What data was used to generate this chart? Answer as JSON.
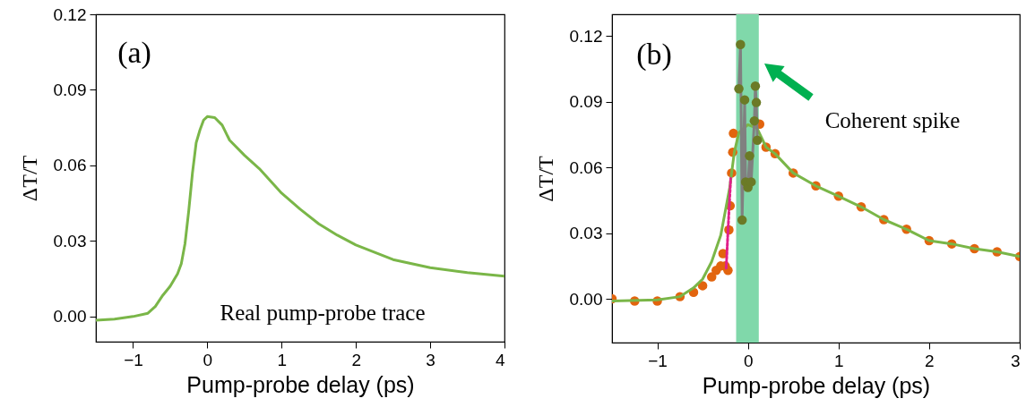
{
  "chart_data": [
    {
      "type": "line",
      "xlabel": "Pump-probe delay (ps)",
      "ylabel": "ΔT/T",
      "annotations": [
        "(a)",
        "Real pump-probe trace"
      ],
      "xlim": [
        -1.5,
        4
      ],
      "xticks": [
        -1,
        0,
        1,
        2,
        3,
        4
      ],
      "ylim": [
        -0.01,
        0.12
      ],
      "yticks": [
        {
          "value": 0,
          "label": "0.00"
        },
        0.03,
        0.06,
        0.09,
        0.12
      ],
      "grid": false,
      "x": [
        -1.5,
        -1.25,
        -1.0,
        -0.8,
        -0.7,
        -0.6,
        -0.5,
        -0.4,
        -0.35,
        -0.3,
        -0.25,
        -0.2,
        -0.15,
        -0.1,
        -0.05,
        0,
        0.1,
        0.2,
        0.3,
        0.5,
        0.7,
        1.0,
        1.25,
        1.5,
        1.75,
        2.0,
        2.5,
        3.0,
        3.5,
        4.0
      ],
      "series": [
        {
          "color": "#7ab648",
          "values": [
            -0.0015,
            -0.001,
            0,
            0.0013,
            0.004,
            0.0084,
            0.012,
            0.017,
            0.021,
            0.029,
            0.042,
            0.057,
            0.069,
            0.074,
            0.078,
            0.0794,
            0.079,
            0.076,
            0.07,
            0.064,
            0.0587,
            0.049,
            0.0426,
            0.0368,
            0.0323,
            0.0284,
            0.0226,
            0.0194,
            0.0174,
            0.016
          ]
        }
      ]
    },
    {
      "type": "scatter",
      "xlabel": "Pump-probe delay (ps)",
      "ylabel": "ΔT/T",
      "annotations": [
        "(b)",
        "Coherent spike"
      ],
      "xlim": [
        -1.5,
        3
      ],
      "xticks": [
        -1,
        0,
        1,
        2,
        3
      ],
      "ylim": [
        -0.02,
        0.13
      ],
      "yticks": [
        {
          "value": 0,
          "label": "0.00"
        },
        0.03,
        0.06,
        0.09,
        0.12
      ],
      "grid": false,
      "bands": [
        {
          "axis": "x",
          "from": -0.13,
          "to": 0.12,
          "color": "#80d8aa"
        }
      ],
      "series": [
        {
          "color": "#e2640e",
          "marker": "circle",
          "x": [
            -1.5,
            -1.25,
            -1.0,
            -0.75,
            -0.6,
            -0.5,
            -0.4,
            -0.35,
            -0.3,
            -0.275,
            -0.25,
            -0.22,
            -0.21,
            -0.196,
            -0.18,
            -0.168,
            -0.16,
            0.13,
            0.2,
            0.3,
            0.5,
            0.75,
            1.0,
            1.25,
            1.5,
            1.75,
            2.0,
            2.25,
            2.5,
            2.75,
            3.0
          ],
          "values": [
            0,
            -0.001,
            -0.001,
            0.001,
            0.003,
            0.006,
            0.01,
            0.013,
            0.015,
            0.0207,
            0.015,
            0.013,
            0.0315,
            0.0425,
            0.0575,
            0.067,
            0.0756,
            0.0798,
            0.0693,
            0.0663,
            0.0575,
            0.0516,
            0.0469,
            0.042,
            0.0362,
            0.0318,
            0.0266,
            0.0251,
            0.0229,
            0.0215,
            0.0193
          ]
        },
        {
          "type": "line",
          "color": "#7ab648",
          "x": [
            -1.5,
            -1.0,
            -0.75,
            -0.6,
            -0.5,
            -0.4,
            -0.3,
            -0.2,
            -0.15,
            -0.1,
            0,
            0.1,
            0.2,
            0.3,
            0.5,
            0.75,
            1.0,
            1.25,
            1.5,
            1.75,
            2.0,
            2.25,
            2.5,
            2.75,
            3.0
          ],
          "values": [
            -0.001,
            -0.0005,
            0.001,
            0.005,
            0.009,
            0.017,
            0.029,
            0.051,
            0.067,
            0.0759,
            0.0796,
            0.078,
            0.0693,
            0.0663,
            0.0575,
            0.0516,
            0.0469,
            0.042,
            0.0362,
            0.0318,
            0.0266,
            0.0251,
            0.0229,
            0.0215,
            0.0193
          ]
        },
        {
          "type": "line",
          "color": "#e0208a",
          "line_style": "dashed",
          "x": [
            -0.24,
            -0.215,
            -0.19
          ],
          "values": [
            0.014,
            0.035,
            0.055
          ]
        },
        {
          "type": "line",
          "color": "#808080",
          "x": [
            -0.1,
            -0.082,
            -0.064,
            -0.036,
            -0.025,
            0,
            0.018,
            0.036,
            0.071,
            0.082,
            0.093,
            0.104
          ],
          "values": [
            0.096,
            0.1162,
            0.036,
            0.0909,
            0.0534,
            0.0509,
            0.0653,
            0.0534,
            0.0813,
            0.0972,
            0.0897,
            0.0725
          ]
        },
        {
          "color": "#6b7a26",
          "marker": "circle",
          "x": [
            -0.1,
            -0.082,
            -0.064,
            -0.036,
            -0.025,
            0,
            0.018,
            0.036,
            0.071,
            0.082,
            0.093,
            0.104
          ],
          "values": [
            0.096,
            0.1162,
            0.036,
            0.0909,
            0.0534,
            0.0509,
            0.0653,
            0.0534,
            0.0813,
            0.0972,
            0.0897,
            0.0725
          ]
        }
      ]
    }
  ]
}
